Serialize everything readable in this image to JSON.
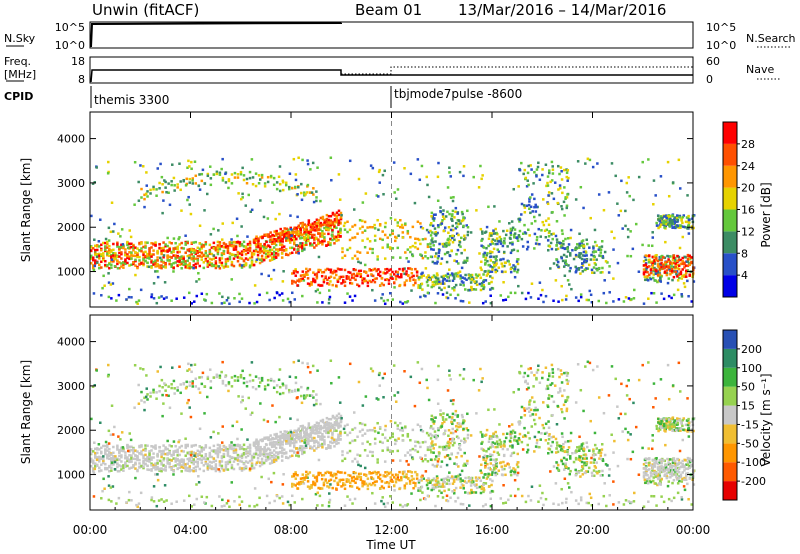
{
  "header": {
    "radar": "Unwin (fitACF)",
    "beam": "Beam 01",
    "dates": "13/Mar/2016 – 14/Mar/2016"
  },
  "panels": {
    "nsky": {
      "label": "N.Sky",
      "ticks": [
        "10^5",
        "10^0"
      ],
      "right_ticks": [
        "10^5",
        "10^0"
      ],
      "right_label": "N.Search"
    },
    "freq": {
      "label_line1": "Freq.",
      "label_line2": "[MHz]",
      "ticks": [
        "18",
        "8"
      ],
      "right_ticks": [
        "60",
        "0"
      ],
      "right_label": "Nave"
    },
    "cpid": {
      "label": "CPID",
      "modes": [
        {
          "name": "themis 3300",
          "start_hour": 0
        },
        {
          "name": "tbjmode7pulse -8600",
          "start_hour": 12
        }
      ]
    }
  },
  "chart_data": [
    {
      "type": "heatmap",
      "name": "power",
      "ylabel": "Slant Range [km]",
      "ylim": [
        200,
        4600
      ],
      "yticks": [
        "1000",
        "2000",
        "3000",
        "4000"
      ],
      "ytick_values": [
        1000,
        2000,
        3000,
        4000
      ],
      "colorbar": {
        "label": "Power [dB]",
        "ticks": [
          "4",
          "8",
          "12",
          "16",
          "20",
          "24",
          "28"
        ],
        "bands": [
          {
            "from": 0,
            "to": 4,
            "color": "#0000e6"
          },
          {
            "from": 4,
            "to": 8,
            "color": "#2850c8"
          },
          {
            "from": 8,
            "to": 12,
            "color": "#3c8c64"
          },
          {
            "from": 12,
            "to": 16,
            "color": "#64c83c"
          },
          {
            "from": 16,
            "to": 20,
            "color": "#e6d200"
          },
          {
            "from": 20,
            "to": 24,
            "color": "#ff9600"
          },
          {
            "from": 24,
            "to": 28,
            "color": "#ff5000"
          },
          {
            "from": 28,
            "to": 32,
            "color": "#ff0000"
          }
        ]
      },
      "features": [
        {
          "t0": 0,
          "t1": 10,
          "r0": 1150,
          "r1": 1800,
          "band": "strong"
        },
        {
          "t0": 7,
          "t1": 10,
          "r0": 1700,
          "r1": 2100,
          "band": "strong"
        },
        {
          "t0": 3,
          "t1": 9,
          "r0": 2500,
          "r1": 3200,
          "band": "medium"
        },
        {
          "t0": 10,
          "t1": 12,
          "r0": 800,
          "r1": 1200,
          "band": "strong"
        },
        {
          "t0": 22,
          "t1": 24,
          "r0": 900,
          "r1": 1400,
          "band": "strong"
        }
      ]
    },
    {
      "type": "heatmap",
      "name": "velocity",
      "ylabel": "Slant Range [km]",
      "ylim": [
        200,
        4600
      ],
      "yticks": [
        "1000",
        "2000",
        "3000",
        "4000"
      ],
      "ytick_values": [
        1000,
        2000,
        3000,
        4000
      ],
      "colorbar": {
        "label": "Velocity [m s⁻¹]",
        "ticks": [
          "-200",
          "-100",
          "-50",
          "-15",
          "15",
          "50",
          "100",
          "200"
        ],
        "bands": [
          {
            "color": "#e60000"
          },
          {
            "color": "#ff5a00"
          },
          {
            "color": "#ff9600"
          },
          {
            "color": "#f0be32"
          },
          {
            "color": "#c8c8c8"
          },
          {
            "color": "#96d250"
          },
          {
            "color": "#3cb43c"
          },
          {
            "color": "#2d8c64"
          },
          {
            "color": "#2850b4"
          }
        ]
      }
    }
  ],
  "xaxis": {
    "label": "Time UT",
    "xlim": [
      0,
      24
    ],
    "ticks": [
      "00:00",
      "04:00",
      "08:00",
      "12:00",
      "16:00",
      "20:00",
      "00:00"
    ],
    "tick_hours": [
      0,
      4,
      8,
      12,
      16,
      20,
      24
    ]
  }
}
